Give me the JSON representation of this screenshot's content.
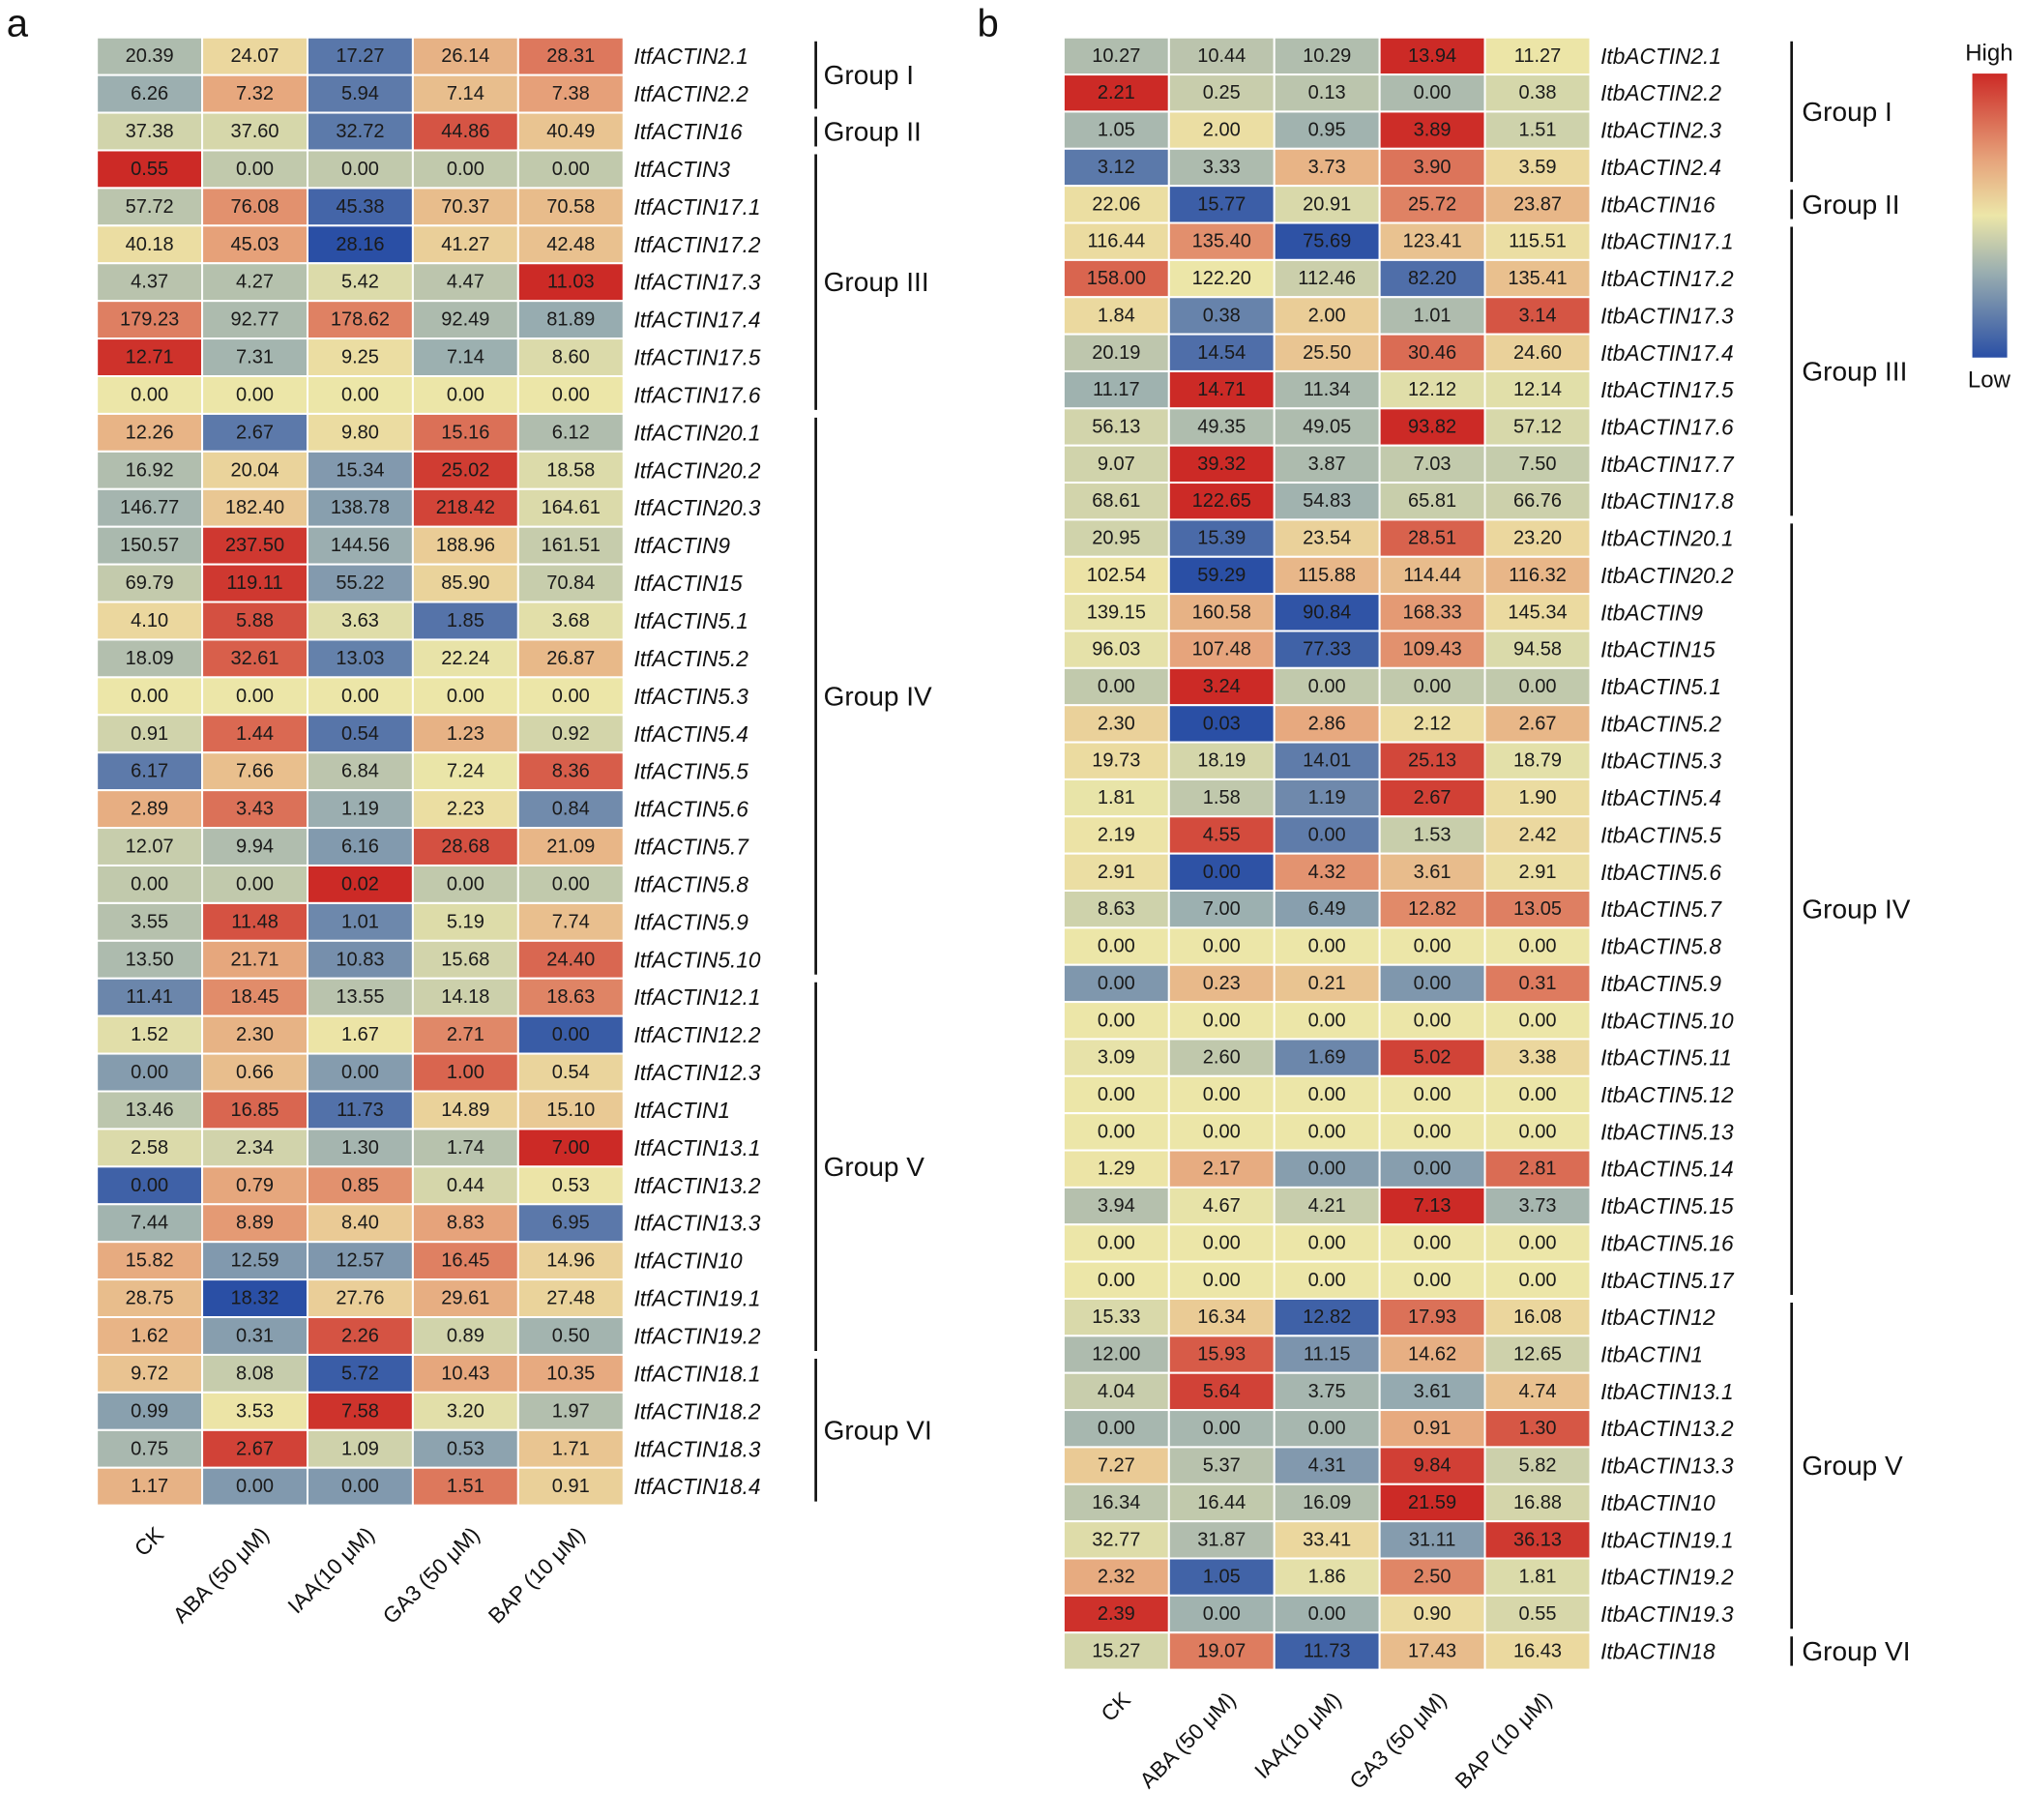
{
  "chart_data": [
    {
      "type": "heatmap",
      "panel_label": "a",
      "categories": [
        "CK",
        "ABA (50 μM)",
        "IAA(10 μM)",
        "GA3 (50 μM)",
        "BAP (10 μM)"
      ],
      "rows": [
        {
          "name": "ItfACTIN2.1",
          "values": [
            20.39,
            24.07,
            17.27,
            26.14,
            28.31
          ]
        },
        {
          "name": "ItfACTIN2.2",
          "values": [
            6.26,
            7.32,
            5.94,
            7.14,
            7.38
          ]
        },
        {
          "name": "ItfACTIN16",
          "values": [
            37.38,
            37.6,
            32.72,
            44.86,
            40.49
          ]
        },
        {
          "name": "ItfACTIN3",
          "values": [
            0.55,
            0.0,
            0.0,
            0.0,
            0.0
          ]
        },
        {
          "name": "ItfACTIN17.1",
          "values": [
            57.72,
            76.08,
            45.38,
            70.37,
            70.58
          ]
        },
        {
          "name": "ItfACTIN17.2",
          "values": [
            40.18,
            45.03,
            28.16,
            41.27,
            42.48
          ]
        },
        {
          "name": "ItfACTIN17.3",
          "values": [
            4.37,
            4.27,
            5.42,
            4.47,
            11.03
          ]
        },
        {
          "name": "ItfACTIN17.4",
          "values": [
            179.23,
            92.77,
            178.62,
            92.49,
            81.89
          ]
        },
        {
          "name": "ItfACTIN17.5",
          "values": [
            12.71,
            7.31,
            9.25,
            7.14,
            8.6
          ]
        },
        {
          "name": "ItfACTIN17.6",
          "values": [
            0.0,
            0.0,
            0.0,
            0.0,
            0.0
          ]
        },
        {
          "name": "ItfACTIN20.1",
          "values": [
            12.26,
            2.67,
            9.8,
            15.16,
            6.12
          ]
        },
        {
          "name": "ItfACTIN20.2",
          "values": [
            16.92,
            20.04,
            15.34,
            25.02,
            18.58
          ]
        },
        {
          "name": "ItfACTIN20.3",
          "values": [
            146.77,
            182.4,
            138.78,
            218.42,
            164.61
          ]
        },
        {
          "name": "ItfACTIN9",
          "values": [
            150.57,
            237.5,
            144.56,
            188.96,
            161.51
          ]
        },
        {
          "name": "ItfACTIN15",
          "values": [
            69.79,
            119.11,
            55.22,
            85.9,
            70.84
          ]
        },
        {
          "name": "ItfACTIN5.1",
          "values": [
            4.1,
            5.88,
            3.63,
            1.85,
            3.68
          ]
        },
        {
          "name": "ItfACTIN5.2",
          "values": [
            18.09,
            32.61,
            13.03,
            22.24,
            26.87
          ]
        },
        {
          "name": "ItfACTIN5.3",
          "values": [
            0.0,
            0.0,
            0.0,
            0.0,
            0.0
          ]
        },
        {
          "name": "ItfACTIN5.4",
          "values": [
            0.91,
            1.44,
            0.54,
            1.23,
            0.92
          ]
        },
        {
          "name": "ItfACTIN5.5",
          "values": [
            6.17,
            7.66,
            6.84,
            7.24,
            8.36
          ]
        },
        {
          "name": "ItfACTIN5.6",
          "values": [
            2.89,
            3.43,
            1.19,
            2.23,
            0.84
          ]
        },
        {
          "name": "ItfACTIN5.7",
          "values": [
            12.07,
            9.94,
            6.16,
            28.68,
            21.09
          ]
        },
        {
          "name": "ItfACTIN5.8",
          "values": [
            0.0,
            0.0,
            0.02,
            0.0,
            0.0
          ]
        },
        {
          "name": "ItfACTIN5.9",
          "values": [
            3.55,
            11.48,
            1.01,
            5.19,
            7.74
          ]
        },
        {
          "name": "ItfACTIN5.10",
          "values": [
            13.5,
            21.71,
            10.83,
            15.68,
            24.4
          ]
        },
        {
          "name": "ItfACTIN12.1",
          "values": [
            11.41,
            18.45,
            13.55,
            14.18,
            18.63
          ]
        },
        {
          "name": "ItfACTIN12.2",
          "values": [
            1.52,
            2.3,
            1.67,
            2.71,
            0.0
          ]
        },
        {
          "name": "ItfACTIN12.3",
          "values": [
            0.0,
            0.66,
            0.0,
            1.0,
            0.54
          ]
        },
        {
          "name": "ItfACTIN1",
          "values": [
            13.46,
            16.85,
            11.73,
            14.89,
            15.1
          ]
        },
        {
          "name": "ItfACTIN13.1",
          "values": [
            2.58,
            2.34,
            1.3,
            1.74,
            7.0
          ]
        },
        {
          "name": "ItfACTIN13.2",
          "values": [
            0.0,
            0.79,
            0.85,
            0.44,
            0.53
          ]
        },
        {
          "name": "ItfACTIN13.3",
          "values": [
            7.44,
            8.89,
            8.4,
            8.83,
            6.95
          ]
        },
        {
          "name": "ItfACTIN10",
          "values": [
            15.82,
            12.59,
            12.57,
            16.45,
            14.96
          ]
        },
        {
          "name": "ItfACTIN19.1",
          "values": [
            28.75,
            18.32,
            27.76,
            29.61,
            27.48
          ]
        },
        {
          "name": "ItfACTIN19.2",
          "values": [
            1.62,
            0.31,
            2.26,
            0.89,
            0.5
          ]
        },
        {
          "name": "ItfACTIN18.1",
          "values": [
            9.72,
            8.08,
            5.72,
            10.43,
            10.35
          ]
        },
        {
          "name": "ItfACTIN18.2",
          "values": [
            0.99,
            3.53,
            7.58,
            3.2,
            1.97
          ]
        },
        {
          "name": "ItfACTIN18.3",
          "values": [
            0.75,
            2.67,
            1.09,
            0.53,
            1.71
          ]
        },
        {
          "name": "ItfACTIN18.4",
          "values": [
            1.17,
            0.0,
            0.0,
            1.51,
            0.91
          ]
        }
      ],
      "groups": [
        {
          "label": "Group I",
          "first": 0,
          "last": 1
        },
        {
          "label": "Group II",
          "first": 2,
          "last": 2
        },
        {
          "label": "Group III",
          "first": 3,
          "last": 9
        },
        {
          "label": "Group IV",
          "first": 10,
          "last": 24
        },
        {
          "label": "Group V",
          "first": 25,
          "last": 34
        },
        {
          "label": "Group VI",
          "first": 35,
          "last": 38
        }
      ]
    },
    {
      "type": "heatmap",
      "panel_label": "b",
      "categories": [
        "CK",
        "ABA (50 μM)",
        "IAA(10 μM)",
        "GA3 (50 μM)",
        "BAP (10 μM)"
      ],
      "rows": [
        {
          "name": "ItbACTIN2.1",
          "values": [
            10.27,
            10.44,
            10.29,
            13.94,
            11.27
          ]
        },
        {
          "name": "ItbACTIN2.2",
          "values": [
            2.21,
            0.25,
            0.13,
            0.0,
            0.38
          ]
        },
        {
          "name": "ItbACTIN2.3",
          "values": [
            1.05,
            2.0,
            0.95,
            3.89,
            1.51
          ]
        },
        {
          "name": "ItbACTIN2.4",
          "values": [
            3.12,
            3.33,
            3.73,
            3.9,
            3.59
          ]
        },
        {
          "name": "ItbACTIN16",
          "values": [
            22.06,
            15.77,
            20.91,
            25.72,
            23.87
          ]
        },
        {
          "name": "ItbACTIN17.1",
          "values": [
            116.44,
            135.4,
            75.69,
            123.41,
            115.51
          ]
        },
        {
          "name": "ItbACTIN17.2",
          "values": [
            158.0,
            122.2,
            112.46,
            82.2,
            135.41
          ]
        },
        {
          "name": "ItbACTIN17.3",
          "values": [
            1.84,
            0.38,
            2.0,
            1.01,
            3.14
          ]
        },
        {
          "name": "ItbACTIN17.4",
          "values": [
            20.19,
            14.54,
            25.5,
            30.46,
            24.6
          ]
        },
        {
          "name": "ItbACTIN17.5",
          "values": [
            11.17,
            14.71,
            11.34,
            12.12,
            12.14
          ]
        },
        {
          "name": "ItbACTIN17.6",
          "values": [
            56.13,
            49.35,
            49.05,
            93.82,
            57.12
          ]
        },
        {
          "name": "ItbACTIN17.7",
          "values": [
            9.07,
            39.32,
            3.87,
            7.03,
            7.5
          ]
        },
        {
          "name": "ItbACTIN17.8",
          "values": [
            68.61,
            122.65,
            54.83,
            65.81,
            66.76
          ]
        },
        {
          "name": "ItbACTIN20.1",
          "values": [
            20.95,
            15.39,
            23.54,
            28.51,
            23.2
          ]
        },
        {
          "name": "ItbACTIN20.2",
          "values": [
            102.54,
            59.29,
            115.88,
            114.44,
            116.32
          ]
        },
        {
          "name": "ItbACTIN9",
          "values": [
            139.15,
            160.58,
            90.84,
            168.33,
            145.34
          ]
        },
        {
          "name": "ItbACTIN15",
          "values": [
            96.03,
            107.48,
            77.33,
            109.43,
            94.58
          ]
        },
        {
          "name": "ItbACTIN5.1",
          "values": [
            0.0,
            3.24,
            0.0,
            0.0,
            0.0
          ]
        },
        {
          "name": "ItbACTIN5.2",
          "values": [
            2.3,
            0.03,
            2.86,
            2.12,
            2.67
          ]
        },
        {
          "name": "ItbACTIN5.3",
          "values": [
            19.73,
            18.19,
            14.01,
            25.13,
            18.79
          ]
        },
        {
          "name": "ItbACTIN5.4",
          "values": [
            1.81,
            1.58,
            1.19,
            2.67,
            1.9
          ]
        },
        {
          "name": "ItbACTIN5.5",
          "values": [
            2.19,
            4.55,
            0.0,
            1.53,
            2.42
          ]
        },
        {
          "name": "ItbACTIN5.6",
          "values": [
            2.91,
            0.0,
            4.32,
            3.61,
            2.91
          ]
        },
        {
          "name": "ItbACTIN5.7",
          "values": [
            8.63,
            7.0,
            6.49,
            12.82,
            13.05
          ]
        },
        {
          "name": "ItbACTIN5.8",
          "values": [
            0.0,
            0.0,
            0.0,
            0.0,
            0.0
          ]
        },
        {
          "name": "ItbACTIN5.9",
          "values": [
            0.0,
            0.23,
            0.21,
            0.0,
            0.31
          ]
        },
        {
          "name": "ItbACTIN5.10",
          "values": [
            0.0,
            0.0,
            0.0,
            0.0,
            0.0
          ]
        },
        {
          "name": "ItbACTIN5.11",
          "values": [
            3.09,
            2.6,
            1.69,
            5.02,
            3.38
          ]
        },
        {
          "name": "ItbACTIN5.12",
          "values": [
            0.0,
            0.0,
            0.0,
            0.0,
            0.0
          ]
        },
        {
          "name": "ItbACTIN5.13",
          "values": [
            0.0,
            0.0,
            0.0,
            0.0,
            0.0
          ]
        },
        {
          "name": "ItbACTIN5.14",
          "values": [
            1.29,
            2.17,
            0.0,
            0.0,
            2.81
          ]
        },
        {
          "name": "ItbACTIN5.15",
          "values": [
            3.94,
            4.67,
            4.21,
            7.13,
            3.73
          ]
        },
        {
          "name": "ItbACTIN5.16",
          "values": [
            0.0,
            0.0,
            0.0,
            0.0,
            0.0
          ]
        },
        {
          "name": "ItbACTIN5.17",
          "values": [
            0.0,
            0.0,
            0.0,
            0.0,
            0.0
          ]
        },
        {
          "name": "ItbACTIN12",
          "values": [
            15.33,
            16.34,
            12.82,
            17.93,
            16.08
          ]
        },
        {
          "name": "ItbACTIN1",
          "values": [
            12.0,
            15.93,
            11.15,
            14.62,
            12.65
          ]
        },
        {
          "name": "ItbACTIN13.1",
          "values": [
            4.04,
            5.64,
            3.75,
            3.61,
            4.74
          ]
        },
        {
          "name": "ItbACTIN13.2",
          "values": [
            0.0,
            0.0,
            0.0,
            0.91,
            1.3
          ]
        },
        {
          "name": "ItbACTIN13.3",
          "values": [
            7.27,
            5.37,
            4.31,
            9.84,
            5.82
          ]
        },
        {
          "name": "ItbACTIN10",
          "values": [
            16.34,
            16.44,
            16.09,
            21.59,
            16.88
          ]
        },
        {
          "name": "ItbACTIN19.1",
          "values": [
            32.77,
            31.87,
            33.41,
            31.11,
            36.13
          ]
        },
        {
          "name": "ItbACTIN19.2",
          "values": [
            2.32,
            1.05,
            1.86,
            2.5,
            1.81
          ]
        },
        {
          "name": "ItbACTIN19.3",
          "values": [
            2.39,
            0.0,
            0.0,
            0.9,
            0.55
          ]
        },
        {
          "name": "ItbACTIN18",
          "values": [
            15.27,
            19.07,
            11.73,
            17.43,
            16.43
          ]
        }
      ],
      "groups": [
        {
          "label": "Group I",
          "first": 0,
          "last": 3
        },
        {
          "label": "Group II",
          "first": 4,
          "last": 4
        },
        {
          "label": "Group III",
          "first": 5,
          "last": 12
        },
        {
          "label": "Group IV",
          "first": 13,
          "last": 33
        },
        {
          "label": "Group V",
          "first": 34,
          "last": 42
        },
        {
          "label": "Group VI",
          "first": 43,
          "last": 43
        }
      ]
    }
  ],
  "colorbar": {
    "high_label": "High",
    "low_label": "Low",
    "colors": [
      "#2a4fa5",
      "#9aaeb0",
      "#ece6a8",
      "#e6a27a",
      "#cc2a26"
    ]
  }
}
